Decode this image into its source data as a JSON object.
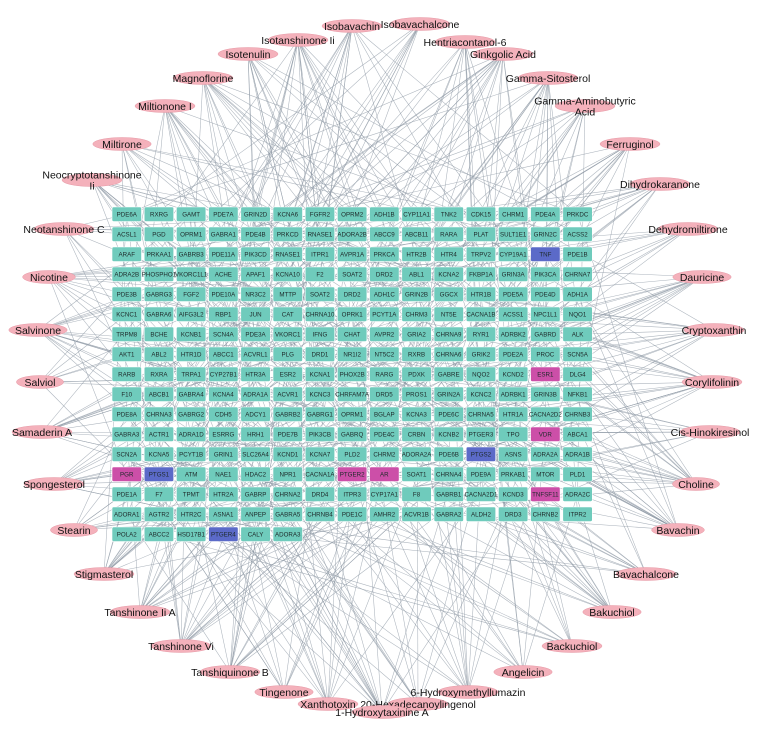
{
  "colors": {
    "target": "#6fcbbc",
    "target_pink": "#cc4fa8",
    "target_blue": "#5b6ac8",
    "compound": "#f4b1bb",
    "edge": "#8f9aa6"
  },
  "targets": [
    [
      "PDE6A",
      "RXRG",
      "GAMT",
      "PDE7A",
      "GRIN2D",
      "KCNA6",
      "FGFR2",
      "OPRM2",
      "ADH1B",
      "CYP11A1",
      "TNK2",
      "CDK15",
      "CHRM1",
      "PDE4A",
      "PRKDC"
    ],
    [
      "ACSL1",
      "PGD",
      "OPRM1",
      "GABRA1",
      "PDE4B",
      "PRKCD",
      "RNASE1",
      "ADORA2B",
      "ABCC9",
      "ABCB11",
      "RARA",
      "PLAT",
      "SULT1E1",
      "GRIN2C",
      "ACSS2"
    ],
    [
      "ARAF",
      "PRKAA1",
      "GABRB3",
      "PDE11A",
      "PIK3CD",
      "RNASE1",
      "ITPR1",
      "AVPR1A",
      "PRKCA",
      "HTR2B",
      "HTR4",
      "TRPV2",
      "CYP19A1",
      "TNF",
      "PDE1B"
    ],
    [
      "ADRA2B",
      "PHOSPHO1",
      "VKORC1L1",
      "ACHE",
      "APAF1",
      "KCNA10",
      "F2",
      "SOAT2",
      "DRD2",
      "ABL1",
      "KCNA2",
      "FKBP1A",
      "GRIN3A",
      "PIK3CA",
      "CHRNA7"
    ],
    [
      "PDE3B",
      "GABRG3",
      "FGF2",
      "PDE10A",
      "NR3C2",
      "MTTP",
      "SOAT2",
      "DRD2",
      "ADH1C",
      "GRIN2B",
      "GGCX",
      "HTR1B",
      "PDE5A",
      "PDE4D",
      "ADH1A"
    ],
    [
      "KCNC1",
      "GABRA6",
      "AIFG3L2",
      "RBP1",
      "JUN",
      "CAT",
      "CHRNA10",
      "OPRK1",
      "PCYT1A",
      "CHRM3",
      "NT5E",
      "CACNA1B",
      "ACSS1",
      "NPC1L1",
      "NQO1"
    ],
    [
      "TRPM8",
      "BCHE",
      "KCNB1",
      "SCN4A",
      "PDE3A",
      "VKORC1",
      "IFNG",
      "CHAT",
      "AVPR2",
      "GRIA2",
      "CHRNA9",
      "RYR1",
      "ADRBK2",
      "GABRD",
      "ALK"
    ],
    [
      "AKT1",
      "ABL2",
      "HTR1D",
      "ABCC1",
      "ACVRL1",
      "PLG",
      "DRD1",
      "NR1I2",
      "NT5C2",
      "RXRB",
      "CHRNA6",
      "GRIK2",
      "PDE2A",
      "PROC",
      "SCN5A"
    ],
    [
      "RARB",
      "RXRA",
      "TRPA1",
      "CYP27B1",
      "HTR3A",
      "ESR2",
      "KCNA1",
      "PHOX2B",
      "RARG",
      "PDXK",
      "GABRE",
      "NQO2",
      "KCND2",
      "ESR1",
      "DLG4"
    ],
    [
      "F10",
      "ABCB1",
      "GABRA4",
      "KCNA4",
      "ADRA1A",
      "ACVR1",
      "KCNC3",
      "CHRFAM7A",
      "DRD5",
      "PROS1",
      "GRIN2A",
      "KCNC2",
      "ADRBK1",
      "GRIN3B",
      "NFKB1"
    ],
    [
      "PDE8A",
      "CHRNA3",
      "GABRG2",
      "CDH5",
      "ADCY1",
      "GABRB2",
      "GABRG1",
      "OPRM1",
      "BGLAP",
      "KCNA3",
      "PDE6C",
      "CHRNA5",
      "HTR1A",
      "CACNA2D2",
      "CHRNB3"
    ],
    [
      "GABRA3",
      "ACTR1",
      "ADRA1D",
      "ESRRG",
      "HRH1",
      "PDE7B",
      "PIK3CB",
      "GABRQ",
      "PDE4C",
      "CRBN",
      "KCNB2",
      "PTGER3",
      "TPO",
      "VDR",
      "ABCA1"
    ],
    [
      "SCN2A",
      "KCNA5",
      "PCYT1B",
      "GRIN1",
      "SLC26A4",
      "KCND1",
      "KCNA7",
      "PLD2",
      "CHRM2",
      "ADORA2A",
      "PDE6B",
      "PTGS2",
      "ASNS",
      "ADRA2A",
      "ADRA1B"
    ],
    [
      "PGR",
      "PTGS1",
      "ATM",
      "NAE1",
      "HDAC2",
      "NPR1",
      "CACNA1A",
      "PTGER2",
      "AR",
      "SOAT1",
      "CHRNA4",
      "PDE9A",
      "PRKAB1",
      "MTOR",
      "PLD1"
    ],
    [
      "PDE1A",
      "F7",
      "TPMT",
      "HTR2A",
      "GABRP",
      "CHRNA2",
      "DRD4",
      "ITPR3",
      "CYP17A1",
      "F8",
      "GABRB1",
      "CACNA2D1",
      "KCND3",
      "TNFSF11",
      "ADRA2C"
    ],
    [
      "ADORA1",
      "AGTR2",
      "HTR2C",
      "ASNA1",
      "ANPEP",
      "GABRA5",
      "CHRNB4",
      "PDE1C",
      "AMHR2",
      "ACVR1B",
      "GABRA2",
      "ALDH2",
      "DRD3",
      "CHRNB2",
      "ITPR2"
    ],
    [
      "POLA2",
      "ABCC2",
      "HSD17B1",
      "PTGER4",
      "CALY",
      "ADORA3",
      "",
      "",
      "",
      "",
      "",
      "",
      "",
      "",
      ""
    ]
  ],
  "highlighted_pink": [
    "ESR1",
    "VDR",
    "PGR",
    "PTGER2",
    "AR",
    "TNFSF11"
  ],
  "highlighted_blue": [
    "TNF",
    "PTGS2",
    "PTGS1",
    "PTGER4"
  ],
  "compounds": [
    "Isobavachin",
    "Isobavachalcone",
    "Isotanshinone Ii",
    "Hentriacontanol-6",
    "Isotenulin",
    "Ginkgolic Acid",
    "Magnoflorine",
    "Gamma-Sitosterol",
    "Miltionone I",
    "Gamma-Aminobutyric Acid",
    "Miltirone",
    "Ferruginol",
    "Neocryptotanshinone Ii",
    "Dihydrokaranone",
    "Neotanshinone C",
    "Dehydromiltirone",
    "Nicotine",
    "Dauricine",
    "Salvinone",
    "Cryptoxanthin",
    "Salviol",
    "Corylifolinin",
    "Samaderin A",
    "Cis-Hinokiresinol",
    "Spongesterol",
    "Choline",
    "Stearin",
    "Bavachin",
    "Stigmasterol",
    "Bavachalcone",
    "Tanshinone Ii A",
    "Bakuchiol",
    "Tanshinone Vi",
    "Backuchiol",
    "Tanshiquinone B",
    "Angelicin",
    "Tingenone",
    "6-Hydroxymethyllumazin",
    "Xanthotoxin",
    "20-Hexadecanoylingenol",
    "1-Hydroxytaxinine A"
  ]
}
